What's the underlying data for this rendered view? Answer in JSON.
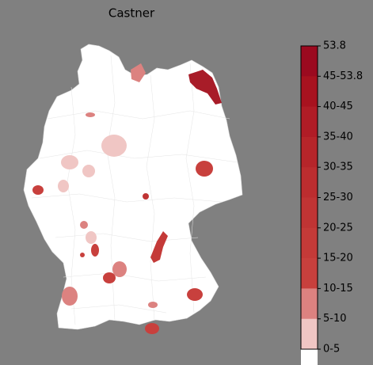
{
  "title": "Castner",
  "legend": {
    "labels": [
      "53.8",
      "45-53.8",
      "40-45",
      "35-40",
      "30-35",
      "25-30",
      "20-25",
      "15-20",
      "10-15",
      "5-10",
      "0-5"
    ],
    "colors": [
      "#9b0a1f",
      "#a8121f",
      "#b01c26",
      "#b6252a",
      "#bc2d2f",
      "#c03434",
      "#c43a38",
      "#c8403d",
      "#dc8280",
      "#f0c6c4",
      "#ffffff"
    ]
  }
}
